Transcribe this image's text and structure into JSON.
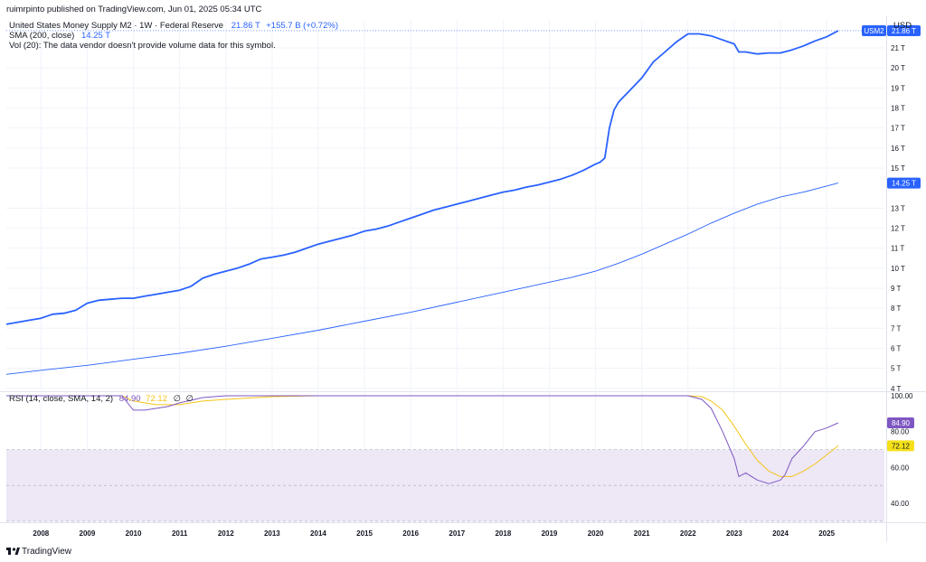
{
  "publish_line": "ruimrpinto published on TradingView.com, Jun 01, 2025 05:34 UTC",
  "currency": "USD",
  "legend": {
    "symbol_title": "United States Money Supply M2 · 1W · Federal Reserve",
    "last_value": "21.86 T",
    "change": "+155.7 B (+0.72%)",
    "sma_label": "SMA (200, close)",
    "sma_value": "14.25 T",
    "vol_label": "Vol (20): The data vendor doesn't provide volume data for this symbol.",
    "rsi_label": "RSI (14, close, SMA, 14, 2)",
    "rsi_value": "84.90",
    "rsi_sma_value": "72.12",
    "rsi_extra1": "∅",
    "rsi_extra2": "∅"
  },
  "badges": {
    "symbol": "USM2",
    "price": "21.86 T",
    "sma": "14.25 T",
    "rsi": "84.90",
    "rsi_sma": "72.12"
  },
  "footer": {
    "brand": "TradingView",
    "logo_icon": "tradingview-logo-icon"
  },
  "colors": {
    "price_line": "#2962ff",
    "sma_line": "#2962ff",
    "rsi_line": "#7e57c2",
    "rsi_sma_line": "#f5c518",
    "rsi_band": "#ede7f6",
    "rsi_badge": "#7e57c2",
    "rsi_sma_badge": "#f5e01a"
  },
  "chart_data": [
    {
      "type": "line",
      "title": "United States Money Supply M2 · 1W · Federal Reserve",
      "x_ticks": [
        "2008",
        "2009",
        "2010",
        "2011",
        "2012",
        "2013",
        "2014",
        "2015",
        "2016",
        "2017",
        "2018",
        "2019",
        "2020",
        "2021",
        "2022",
        "2023",
        "2024",
        "2025"
      ],
      "y_ticks": [
        "4 T",
        "5 T",
        "6 T",
        "7 T",
        "8 T",
        "9 T",
        "10 T",
        "11 T",
        "12 T",
        "13 T",
        "15 T",
        "16 T",
        "17 T",
        "18 T",
        "19 T",
        "20 T",
        "21 T"
      ],
      "y_unit": "T",
      "ylim": [
        3.9,
        22.4
      ],
      "xlim": [
        2007.25,
        2026.25
      ],
      "grid": true,
      "series": [
        {
          "name": "USM2",
          "x": [
            2007.25,
            2007.5,
            2007.75,
            2008.0,
            2008.25,
            2008.5,
            2008.75,
            2009.0,
            2009.25,
            2009.5,
            2009.75,
            2010.0,
            2010.25,
            2010.5,
            2010.75,
            2011.0,
            2011.25,
            2011.5,
            2011.75,
            2012.0,
            2012.25,
            2012.5,
            2012.75,
            2013.0,
            2013.25,
            2013.5,
            2013.75,
            2014.0,
            2014.25,
            2014.5,
            2014.75,
            2015.0,
            2015.25,
            2015.5,
            2015.75,
            2016.0,
            2016.25,
            2016.5,
            2016.75,
            2017.0,
            2017.25,
            2017.5,
            2017.75,
            2018.0,
            2018.25,
            2018.5,
            2018.75,
            2019.0,
            2019.25,
            2019.5,
            2019.75,
            2020.0,
            2020.1,
            2020.2,
            2020.3,
            2020.4,
            2020.5,
            2020.75,
            2021.0,
            2021.25,
            2021.5,
            2021.75,
            2022.0,
            2022.25,
            2022.5,
            2022.75,
            2023.0,
            2023.1,
            2023.25,
            2023.5,
            2023.75,
            2024.0,
            2024.25,
            2024.5,
            2024.75,
            2025.0,
            2025.25
          ],
          "values": [
            7.2,
            7.3,
            7.4,
            7.5,
            7.7,
            7.75,
            7.9,
            8.25,
            8.4,
            8.45,
            8.5,
            8.5,
            8.6,
            8.7,
            8.8,
            8.9,
            9.1,
            9.5,
            9.7,
            9.85,
            10.0,
            10.2,
            10.45,
            10.55,
            10.65,
            10.8,
            11.0,
            11.2,
            11.35,
            11.5,
            11.65,
            11.85,
            11.95,
            12.1,
            12.3,
            12.5,
            12.7,
            12.9,
            13.05,
            13.2,
            13.35,
            13.5,
            13.65,
            13.8,
            13.9,
            14.05,
            14.15,
            14.3,
            14.45,
            14.65,
            14.9,
            15.2,
            15.3,
            15.5,
            17.0,
            17.9,
            18.3,
            18.9,
            19.5,
            20.3,
            20.8,
            21.3,
            21.7,
            21.7,
            21.6,
            21.4,
            21.2,
            20.8,
            20.8,
            20.7,
            20.75,
            20.75,
            20.9,
            21.1,
            21.35,
            21.55,
            21.86
          ]
        },
        {
          "name": "SMA (200, close)",
          "x": [
            2007.25,
            2008.0,
            2009.0,
            2010.0,
            2011.0,
            2012.0,
            2013.0,
            2014.0,
            2015.0,
            2016.0,
            2017.0,
            2018.0,
            2019.0,
            2019.5,
            2020.0,
            2020.5,
            2021.0,
            2021.5,
            2022.0,
            2022.5,
            2023.0,
            2023.5,
            2024.0,
            2024.5,
            2025.0,
            2025.25
          ],
          "values": [
            4.7,
            4.9,
            5.15,
            5.45,
            5.75,
            6.1,
            6.5,
            6.9,
            7.35,
            7.8,
            8.3,
            8.8,
            9.3,
            9.55,
            9.85,
            10.25,
            10.7,
            11.2,
            11.7,
            12.25,
            12.75,
            13.2,
            13.55,
            13.8,
            14.1,
            14.25
          ]
        }
      ]
    },
    {
      "type": "line",
      "title": "RSI (14, close, SMA, 14, 2)",
      "y_ticks": [
        "100.00",
        "80.00",
        "60.00",
        "40.00"
      ],
      "ylim": [
        30,
        101
      ],
      "xlim": [
        2007.25,
        2026.25
      ],
      "band": [
        30,
        70
      ],
      "series": [
        {
          "name": "RSI",
          "x": [
            2007.25,
            2009.5,
            2009.75,
            2010.0,
            2010.25,
            2010.5,
            2010.75,
            2011.0,
            2011.5,
            2012.0,
            2013.0,
            2014.0,
            2015.0,
            2016.0,
            2017.0,
            2018.0,
            2019.0,
            2020.0,
            2021.0,
            2022.0,
            2022.3,
            2022.5,
            2022.75,
            2023.0,
            2023.1,
            2023.25,
            2023.5,
            2023.75,
            2024.0,
            2024.1,
            2024.25,
            2024.5,
            2024.75,
            2025.0,
            2025.25
          ],
          "values": [
            100,
            100,
            100,
            92,
            92,
            93,
            94,
            96,
            99,
            100,
            100,
            100,
            100,
            100,
            100,
            100,
            100,
            100,
            100,
            100,
            98,
            93,
            80,
            65,
            55,
            57,
            53,
            51,
            53,
            56,
            65,
            72,
            80,
            82,
            84.9
          ]
        },
        {
          "name": "RSI SMA",
          "x": [
            2007.25,
            2009.5,
            2009.75,
            2010.0,
            2010.25,
            2010.5,
            2010.75,
            2011.0,
            2011.5,
            2012.0,
            2013.0,
            2014.0,
            2015.0,
            2016.0,
            2017.0,
            2018.0,
            2019.0,
            2020.0,
            2021.0,
            2022.0,
            2022.3,
            2022.5,
            2022.75,
            2023.0,
            2023.25,
            2023.5,
            2023.75,
            2024.0,
            2024.25,
            2024.5,
            2024.75,
            2025.0,
            2025.25
          ],
          "values": [
            100,
            100,
            100,
            97,
            96,
            95,
            95,
            95,
            97,
            98,
            99.5,
            100,
            100,
            100,
            100,
            100,
            100,
            100,
            100,
            100,
            99.5,
            97,
            92,
            83,
            73,
            64,
            58,
            55,
            55,
            58,
            62,
            67,
            72.12
          ]
        }
      ]
    }
  ]
}
